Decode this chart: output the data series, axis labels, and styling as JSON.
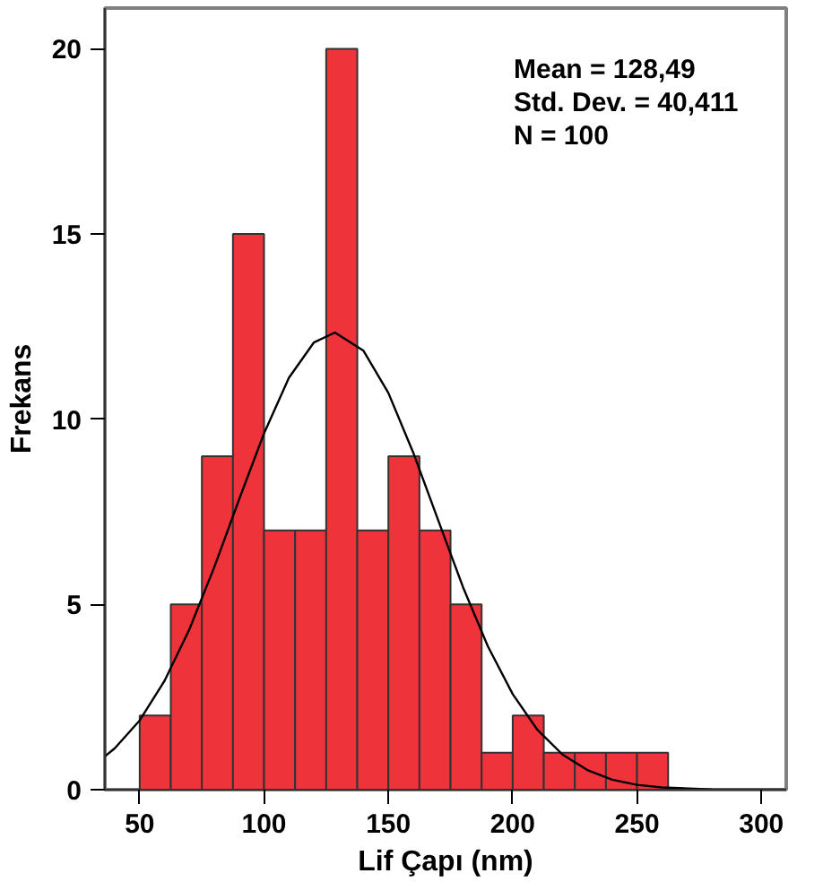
{
  "chart_data": {
    "type": "histogram",
    "xlabel": "Lif Çapı (nm)",
    "ylabel": "Frekans",
    "bins": [
      50,
      62.5,
      75,
      87.5,
      100,
      112.5,
      125,
      137.5,
      150,
      162.5,
      175,
      187.5,
      200,
      212.5,
      225,
      237.5,
      250,
      262.5
    ],
    "values": [
      2,
      5,
      9,
      15,
      7,
      7,
      20,
      7,
      9,
      7,
      5,
      1,
      2,
      1,
      1,
      1,
      1
    ],
    "color": "#ee333b",
    "series": [
      {
        "type": "line",
        "color": "#000000",
        "x": [
          36,
          40,
          50,
          60,
          70,
          80,
          90,
          100,
          110,
          120,
          128.5,
          140,
          150,
          160,
          170,
          180,
          190,
          200,
          210,
          220,
          230,
          240,
          250,
          260,
          280,
          300,
          310
        ],
        "values": [
          0.9,
          1.12,
          1.87,
          2.94,
          4.33,
          6.01,
          7.84,
          9.62,
          11.12,
          12.07,
          12.34,
          11.85,
          10.71,
          9.1,
          7.28,
          5.47,
          3.87,
          2.58,
          1.61,
          0.95,
          0.53,
          0.27,
          0.13,
          0.06,
          0.01,
          0,
          0
        ]
      }
    ],
    "xlim": [
      36,
      310
    ],
    "ylim": [
      0,
      21.1
    ],
    "xticks": [
      50,
      100,
      150,
      200,
      250,
      300
    ],
    "yticks": [
      0,
      5,
      10,
      15,
      20
    ],
    "grid": false,
    "annotations": [
      "Mean = 128,49",
      "Std. Dev. = 40,411",
      "N = 100"
    ]
  }
}
